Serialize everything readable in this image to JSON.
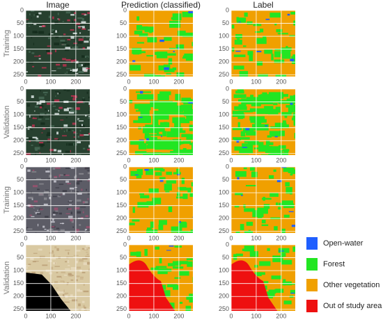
{
  "columns": [
    "Image",
    "Prediction (classified)",
    "Label"
  ],
  "rows": [
    "Training",
    "Validation",
    "Training",
    "Validation"
  ],
  "yticks": [
    0,
    50,
    100,
    150,
    200,
    250
  ],
  "xticks": [
    0,
    100,
    200
  ],
  "legend": [
    {
      "name": "Open-water",
      "color": "#1f5fff"
    },
    {
      "name": "Forest",
      "color": "#22e622"
    },
    {
      "name": "Other vegetation",
      "color": "#f0a000"
    },
    {
      "name": "Out of study area",
      "color": "#ee1010"
    }
  ]
}
